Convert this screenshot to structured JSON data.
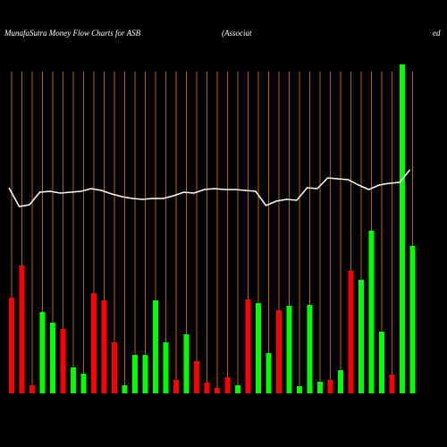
{
  "chart_data": {
    "type": "bar",
    "title": "MunafaSutra  Money Flow  Charts for ASB",
    "subtitle": "(Associat",
    "subtitle_end": "ed",
    "values": [
      107,
      143,
      9,
      91,
      79,
      72,
      29,
      22,
      112,
      104,
      57,
      9,
      43,
      43,
      104,
      57,
      15,
      66,
      36,
      12,
      6,
      18,
      9,
      105,
      101,
      45,
      93,
      98,
      8,
      99,
      13,
      15,
      26,
      137,
      127,
      182,
      69,
      21,
      368,
      165
    ],
    "bar_colors": [
      "#ff0000",
      "#ff0000",
      "#ff0000",
      "#00ff00",
      "#00ff00",
      "#ff0000",
      "#00ff00",
      "#00ff00",
      "#ff0000",
      "#ff0000",
      "#ff0000",
      "#00ff00",
      "#00ff00",
      "#00ff00",
      "#00ff00",
      "#00ff00",
      "#ff0000",
      "#00ff00",
      "#ff0000",
      "#ff0000",
      "#ff0000",
      "#ff0000",
      "#00ff00",
      "#ff0000",
      "#00ff00",
      "#00ff00",
      "#ff0000",
      "#00ff00",
      "#00ff00",
      "#00ff00",
      "#00ff00",
      "#ff0000",
      "#00ff00",
      "#ff0000",
      "#00ff00",
      "#00ff00",
      "#00ff00",
      "#ff0000",
      "#00ff00",
      "#00ff00"
    ],
    "line_values": [
      230,
      209,
      211,
      225,
      226,
      224,
      225,
      226,
      229,
      227,
      223,
      220,
      218,
      217,
      218,
      218,
      221,
      225,
      224,
      228,
      229,
      228,
      228,
      227,
      226,
      210,
      215,
      217,
      216,
      230,
      229,
      241,
      240,
      239,
      233,
      228,
      233,
      235,
      236,
      250
    ],
    "line_color": "#ffffff",
    "grid_color": "#b8620a",
    "ylim": [
      0,
      370
    ]
  }
}
